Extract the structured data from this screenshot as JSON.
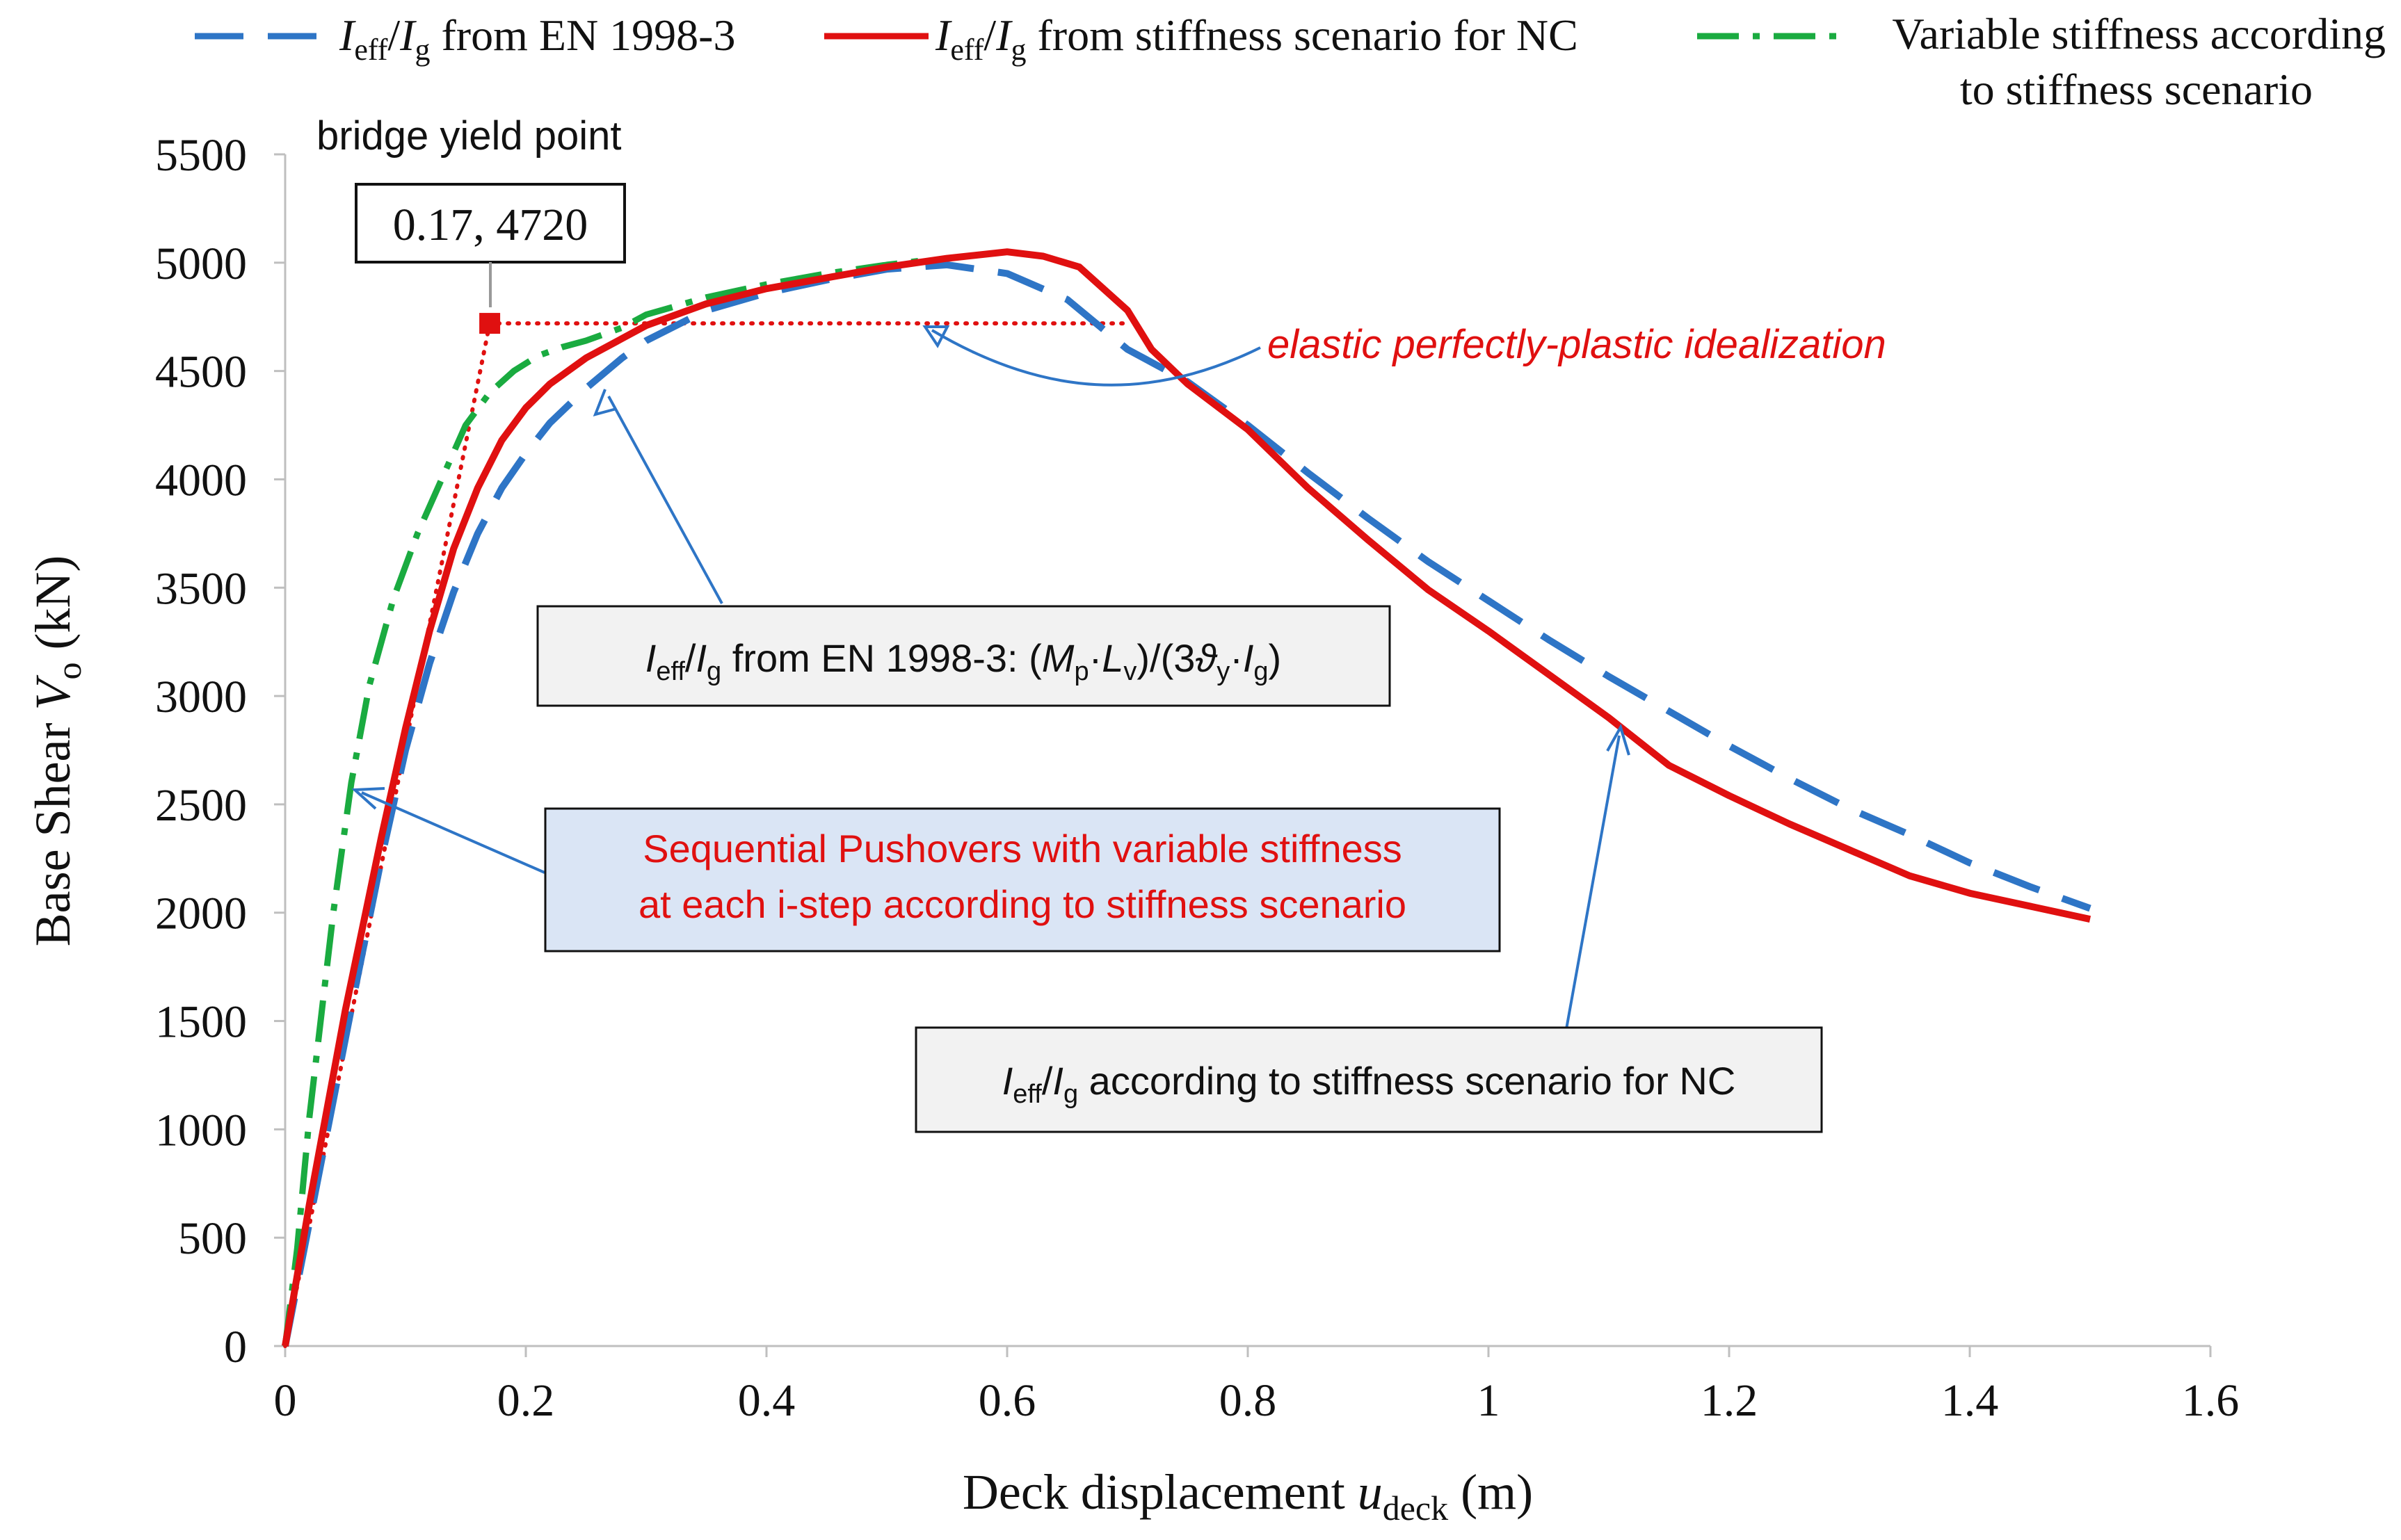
{
  "chart_data": {
    "type": "line",
    "title": "",
    "xlabel": {
      "main": "Deck displacement ",
      "var": "u",
      "sub": "deck",
      "unit": " (m)"
    },
    "ylabel": {
      "main": "Base Shear ",
      "var": "V",
      "sub": "o",
      "unit": " (kN)"
    },
    "xlim": [
      0,
      1.6
    ],
    "ylim": [
      0,
      5500
    ],
    "xticks": [
      0,
      0.2,
      0.4,
      0.6,
      0.8,
      1,
      1.2,
      1.4,
      1.6
    ],
    "xtick_labels": [
      "0",
      "0.2",
      "0.4",
      "0.6",
      "0.8",
      "1",
      "1.2",
      "1.4",
      "1.6"
    ],
    "yticks": [
      0,
      500,
      1000,
      1500,
      2000,
      2500,
      3000,
      3500,
      4000,
      4500,
      5000,
      5500
    ],
    "ytick_labels": [
      "0",
      "500",
      "1000",
      "1500",
      "2000",
      "2500",
      "3000",
      "3500",
      "4000",
      "4500",
      "5000",
      "5500"
    ],
    "grid": false,
    "legend_position": "top",
    "series": [
      {
        "name": "Ieff/Ig from EN 1998-3",
        "legend": {
          "var": "I",
          "sub": "eff",
          "slash": "/",
          "var2": "I",
          "sub2": "g",
          "rest": " from EN 1998-3"
        },
        "style": "dashed",
        "color": "#2e75c6",
        "x": [
          0,
          0.03,
          0.06,
          0.08,
          0.1,
          0.12,
          0.14,
          0.16,
          0.18,
          0.2,
          0.22,
          0.25,
          0.28,
          0.3,
          0.35,
          0.4,
          0.45,
          0.5,
          0.55,
          0.6,
          0.65,
          0.7,
          0.75,
          0.8,
          0.85,
          0.9,
          0.95,
          1.0,
          1.05,
          1.1,
          1.15,
          1.2,
          1.25,
          1.3,
          1.35,
          1.4,
          1.45,
          1.5
        ],
        "y": [
          0,
          850,
          1700,
          2250,
          2750,
          3150,
          3480,
          3750,
          3960,
          4120,
          4260,
          4420,
          4560,
          4640,
          4780,
          4860,
          4920,
          4970,
          4990,
          4950,
          4830,
          4600,
          4450,
          4250,
          4030,
          3820,
          3620,
          3440,
          3260,
          3090,
          2930,
          2770,
          2620,
          2480,
          2360,
          2230,
          2120,
          2020
        ]
      },
      {
        "name": "Ieff/Ig from stiffness scenario for NC",
        "legend": {
          "var": "I",
          "sub": "eff",
          "slash": "/",
          "var2": "I",
          "sub2": "g",
          "rest": " from stiffness scenario for NC"
        },
        "style": "solid",
        "color": "#e01010",
        "x": [
          0,
          0.02,
          0.05,
          0.08,
          0.1,
          0.12,
          0.14,
          0.16,
          0.18,
          0.2,
          0.22,
          0.25,
          0.28,
          0.3,
          0.35,
          0.4,
          0.45,
          0.5,
          0.55,
          0.6,
          0.63,
          0.66,
          0.7,
          0.72,
          0.75,
          0.8,
          0.85,
          0.9,
          0.95,
          1.0,
          1.05,
          1.1,
          1.15,
          1.2,
          1.25,
          1.3,
          1.35,
          1.4,
          1.45,
          1.5
        ],
        "y": [
          0,
          650,
          1550,
          2350,
          2850,
          3300,
          3680,
          3960,
          4180,
          4330,
          4440,
          4560,
          4650,
          4710,
          4810,
          4880,
          4930,
          4980,
          5020,
          5050,
          5030,
          4980,
          4780,
          4600,
          4440,
          4230,
          3960,
          3720,
          3490,
          3300,
          3100,
          2900,
          2680,
          2540,
          2410,
          2290,
          2170,
          2090,
          2030,
          1970
        ]
      },
      {
        "name": "Variable stiffness according to stiffness scenario",
        "legend": {
          "line1": "Variable stiffness according",
          "line2": "to stiffness scenario"
        },
        "style": "dashdot",
        "color": "#1aab40",
        "x": [
          0,
          0.01,
          0.02,
          0.04,
          0.055,
          0.07,
          0.09,
          0.11,
          0.13,
          0.15,
          0.17,
          0.19,
          0.21,
          0.23,
          0.25,
          0.28,
          0.3,
          0.35,
          0.4,
          0.45,
          0.5,
          0.53
        ],
        "y": [
          0,
          450,
          1050,
          2000,
          2600,
          3050,
          3450,
          3750,
          4000,
          4250,
          4400,
          4500,
          4570,
          4610,
          4640,
          4700,
          4760,
          4840,
          4900,
          4950,
          4990,
          5010
        ]
      },
      {
        "name": "elastic perfectly-plastic idealization",
        "style": "dotted",
        "color": "#e01010",
        "x": [
          0,
          0.17,
          0.7
        ],
        "y": [
          0,
          4720,
          4720
        ]
      }
    ],
    "yield_point": {
      "x": 0.17,
      "y": 4720,
      "label": "0.17, 4720",
      "title": "bridge yield point"
    },
    "annotations": {
      "epp": "elastic perfectly-plastic idealization",
      "en_box": {
        "i1": "I",
        "s1": "eff",
        "slash": "/",
        "i2": "I",
        "s2": "g",
        "text": " from EN 1998-3: (",
        "m": "M",
        "sm": "p",
        "dot1": "·",
        "l": "L",
        "sl": "v",
        "close": ")/(3",
        "theta": "ϑ",
        "st": "y",
        "dot2": "·",
        "i3": "I",
        "s3": "g",
        "end": ")"
      },
      "seq_box": {
        "line1": "Sequential Pushovers with variable stiffness",
        "line2": "at each i-step according to stiffness scenario"
      },
      "nc_box": {
        "i1": "I",
        "s1": "eff",
        "slash": "/",
        "i2": "I",
        "s2": "g",
        "text": " according to stiffness scenario for NC"
      }
    }
  }
}
